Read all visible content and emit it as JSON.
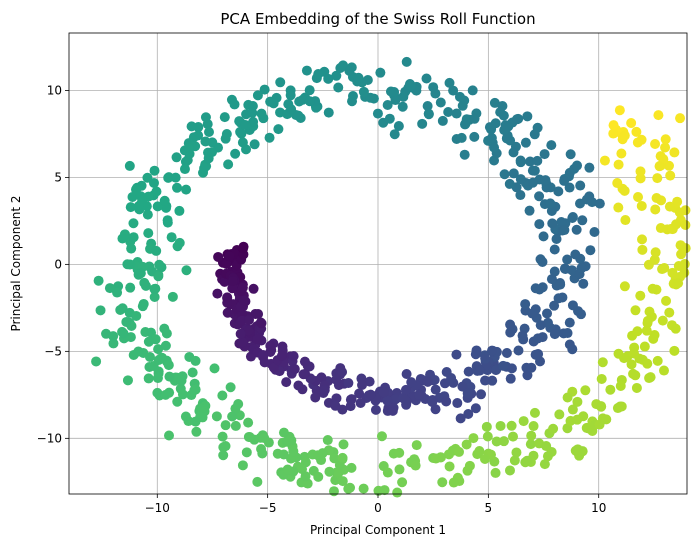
{
  "chart_data": {
    "type": "scatter",
    "title": "PCA Embedding of the Swiss Roll Function",
    "xlabel": "Principal Component 1",
    "ylabel": "Principal Component 2",
    "xlim": [
      -14,
      14
    ],
    "ylim": [
      -13.2,
      13.3
    ],
    "xticks": [
      -10,
      -5,
      0,
      5,
      10
    ],
    "yticks": [
      -10,
      -5,
      0,
      5,
      10
    ],
    "xtick_labels": [
      "−10",
      "−5",
      "0",
      "5",
      "10"
    ],
    "ytick_labels": [
      "−10",
      "−5",
      "0",
      "5",
      "10"
    ],
    "grid": true,
    "colormap": "viridis",
    "marker_color_range": [
      "#440154",
      "#fde725"
    ],
    "spiral": {
      "description_points": "points sampled along a spiral from the inner end near (-6.3, 1.1) outward, counter-clockwise, to the outer end near (11, 8.4)",
      "inner_end": [
        -6.3,
        1.1
      ],
      "outer_end": [
        11.0,
        8.4
      ],
      "point_count": 1000
    },
    "series": []
  }
}
